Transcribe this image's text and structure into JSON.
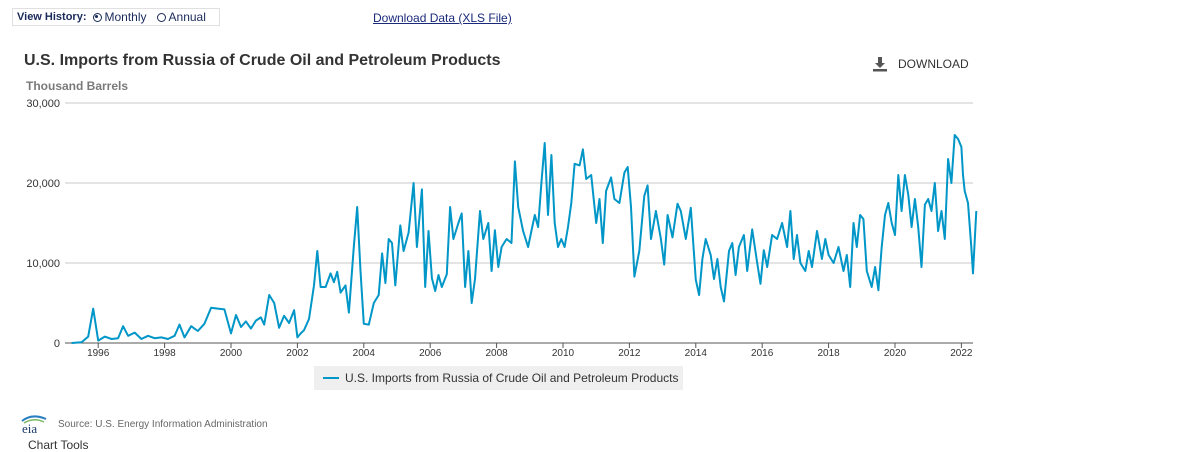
{
  "header": {
    "view_history_label": "View History:",
    "monthly_label": "Monthly",
    "annual_label": "Annual",
    "selected": "Monthly",
    "download_data_link": "Download Data (XLS File)"
  },
  "download_button_label": "DOWNLOAD",
  "footer": {
    "logo_text": "eia",
    "source": "Source: U.S. Energy Information Administration",
    "chart_tools": "Chart Tools"
  },
  "colors": {
    "series": "#0096c7",
    "grid": "#c8c8c8",
    "axis": "#555555"
  },
  "chart_data": {
    "type": "line",
    "title": "U.S. Imports from Russia of Crude Oil and Petroleum Products",
    "ylabel": "Thousand Barrels",
    "ylim": [
      0,
      30000
    ],
    "xlim": [
      1995,
      2022.35
    ],
    "y_ticks": [
      {
        "value": 0,
        "label": "0"
      },
      {
        "value": 10000,
        "label": "10,000"
      },
      {
        "value": 20000,
        "label": "20,000"
      },
      {
        "value": 30000,
        "label": "30,000"
      }
    ],
    "x_ticks": [
      "1996",
      "1998",
      "2000",
      "2002",
      "2004",
      "2006",
      "2008",
      "2010",
      "2012",
      "2014",
      "2016",
      "2018",
      "2020",
      "2022"
    ],
    "grid": "horizontal",
    "legend_position": "bottom",
    "series": [
      {
        "name": "U.S. Imports from Russia of Crude Oil and Petroleum Products",
        "points": [
          [
            1995.2,
            0
          ],
          [
            1995.5,
            100
          ],
          [
            1995.7,
            800
          ],
          [
            1995.85,
            4300
          ],
          [
            1996.0,
            300
          ],
          [
            1996.2,
            800
          ],
          [
            1996.4,
            500
          ],
          [
            1996.6,
            600
          ],
          [
            1996.75,
            2100
          ],
          [
            1996.9,
            900
          ],
          [
            1997.1,
            1300
          ],
          [
            1997.3,
            500
          ],
          [
            1997.5,
            900
          ],
          [
            1997.7,
            600
          ],
          [
            1997.9,
            700
          ],
          [
            1998.1,
            500
          ],
          [
            1998.3,
            900
          ],
          [
            1998.45,
            2300
          ],
          [
            1998.6,
            700
          ],
          [
            1998.8,
            2100
          ],
          [
            1999.0,
            1500
          ],
          [
            1999.2,
            2400
          ],
          [
            1999.4,
            4400
          ],
          [
            1999.6,
            4300
          ],
          [
            1999.8,
            4200
          ],
          [
            2000.0,
            1200
          ],
          [
            2000.15,
            3500
          ],
          [
            2000.3,
            2000
          ],
          [
            2000.45,
            2700
          ],
          [
            2000.6,
            1800
          ],
          [
            2000.75,
            2800
          ],
          [
            2000.9,
            3200
          ],
          [
            2001.0,
            2300
          ],
          [
            2001.15,
            6000
          ],
          [
            2001.3,
            5000
          ],
          [
            2001.45,
            1900
          ],
          [
            2001.6,
            3400
          ],
          [
            2001.75,
            2500
          ],
          [
            2001.9,
            4100
          ],
          [
            2002.0,
            700
          ],
          [
            2002.1,
            1200
          ],
          [
            2002.2,
            1600
          ],
          [
            2002.35,
            3000
          ],
          [
            2002.5,
            7200
          ],
          [
            2002.6,
            11500
          ],
          [
            2002.7,
            7000
          ],
          [
            2002.85,
            7000
          ],
          [
            2003.0,
            8700
          ],
          [
            2003.1,
            7600
          ],
          [
            2003.2,
            8900
          ],
          [
            2003.3,
            6300
          ],
          [
            2003.45,
            7200
          ],
          [
            2003.55,
            3800
          ],
          [
            2003.7,
            12000
          ],
          [
            2003.8,
            17000
          ],
          [
            2003.9,
            9000
          ],
          [
            2004.0,
            2400
          ],
          [
            2004.15,
            2300
          ],
          [
            2004.3,
            5000
          ],
          [
            2004.45,
            6000
          ],
          [
            2004.55,
            11200
          ],
          [
            2004.65,
            7500
          ],
          [
            2004.75,
            13000
          ],
          [
            2004.85,
            12500
          ],
          [
            2004.95,
            7200
          ],
          [
            2005.1,
            14700
          ],
          [
            2005.2,
            11500
          ],
          [
            2005.35,
            13800
          ],
          [
            2005.5,
            20000
          ],
          [
            2005.6,
            12000
          ],
          [
            2005.75,
            19200
          ],
          [
            2005.85,
            7000
          ],
          [
            2005.95,
            14000
          ],
          [
            2006.05,
            8100
          ],
          [
            2006.15,
            6500
          ],
          [
            2006.25,
            8500
          ],
          [
            2006.35,
            7000
          ],
          [
            2006.5,
            8600
          ],
          [
            2006.6,
            17000
          ],
          [
            2006.7,
            13000
          ],
          [
            2006.85,
            15000
          ],
          [
            2006.95,
            16200
          ],
          [
            2007.05,
            7000
          ],
          [
            2007.15,
            11500
          ],
          [
            2007.25,
            5000
          ],
          [
            2007.35,
            8000
          ],
          [
            2007.5,
            16500
          ],
          [
            2007.6,
            13000
          ],
          [
            2007.75,
            15000
          ],
          [
            2007.85,
            9000
          ],
          [
            2007.95,
            14100
          ],
          [
            2008.05,
            9500
          ],
          [
            2008.15,
            12000
          ],
          [
            2008.3,
            13000
          ],
          [
            2008.45,
            12500
          ],
          [
            2008.55,
            22700
          ],
          [
            2008.65,
            17000
          ],
          [
            2008.8,
            14000
          ],
          [
            2008.95,
            12000
          ],
          [
            2009.05,
            14000
          ],
          [
            2009.15,
            16000
          ],
          [
            2009.25,
            14500
          ],
          [
            2009.35,
            20000
          ],
          [
            2009.45,
            25000
          ],
          [
            2009.55,
            16000
          ],
          [
            2009.65,
            23500
          ],
          [
            2009.75,
            15000
          ],
          [
            2009.85,
            12000
          ],
          [
            2009.95,
            13000
          ],
          [
            2010.05,
            12000
          ],
          [
            2010.15,
            14500
          ],
          [
            2010.25,
            17500
          ],
          [
            2010.35,
            22400
          ],
          [
            2010.5,
            22200
          ],
          [
            2010.6,
            24200
          ],
          [
            2010.7,
            20500
          ],
          [
            2010.85,
            21000
          ],
          [
            2011.0,
            15000
          ],
          [
            2011.1,
            18000
          ],
          [
            2011.2,
            12500
          ],
          [
            2011.3,
            19000
          ],
          [
            2011.45,
            20700
          ],
          [
            2011.55,
            18000
          ],
          [
            2011.7,
            17500
          ],
          [
            2011.85,
            21300
          ],
          [
            2011.95,
            22000
          ],
          [
            2012.05,
            17000
          ],
          [
            2012.15,
            8300
          ],
          [
            2012.3,
            11500
          ],
          [
            2012.45,
            18400
          ],
          [
            2012.55,
            19700
          ],
          [
            2012.65,
            13000
          ],
          [
            2012.8,
            16500
          ],
          [
            2012.95,
            13000
          ],
          [
            2013.05,
            9800
          ],
          [
            2013.15,
            16000
          ],
          [
            2013.3,
            13200
          ],
          [
            2013.45,
            17400
          ],
          [
            2013.55,
            16500
          ],
          [
            2013.7,
            13000
          ],
          [
            2013.85,
            16900
          ],
          [
            2014.0,
            7900
          ],
          [
            2014.1,
            6000
          ],
          [
            2014.2,
            10500
          ],
          [
            2014.3,
            13000
          ],
          [
            2014.45,
            11000
          ],
          [
            2014.55,
            8000
          ],
          [
            2014.65,
            10500
          ],
          [
            2014.75,
            7000
          ],
          [
            2014.85,
            5200
          ],
          [
            2015.0,
            11500
          ],
          [
            2015.1,
            12500
          ],
          [
            2015.2,
            8500
          ],
          [
            2015.3,
            12000
          ],
          [
            2015.45,
            13500
          ],
          [
            2015.55,
            9000
          ],
          [
            2015.7,
            14200
          ],
          [
            2015.85,
            10000
          ],
          [
            2015.95,
            7400
          ],
          [
            2016.05,
            11600
          ],
          [
            2016.15,
            9500
          ],
          [
            2016.3,
            13500
          ],
          [
            2016.45,
            13000
          ],
          [
            2016.6,
            15000
          ],
          [
            2016.75,
            12000
          ],
          [
            2016.85,
            16500
          ],
          [
            2016.95,
            10500
          ],
          [
            2017.05,
            13500
          ],
          [
            2017.15,
            10000
          ],
          [
            2017.3,
            9000
          ],
          [
            2017.4,
            11500
          ],
          [
            2017.5,
            9500
          ],
          [
            2017.65,
            14000
          ],
          [
            2017.8,
            10500
          ],
          [
            2017.9,
            13000
          ],
          [
            2018.0,
            11000
          ],
          [
            2018.15,
            10000
          ],
          [
            2018.3,
            12000
          ],
          [
            2018.45,
            9000
          ],
          [
            2018.55,
            11000
          ],
          [
            2018.65,
            7000
          ],
          [
            2018.75,
            15000
          ],
          [
            2018.85,
            12000
          ],
          [
            2018.95,
            16000
          ],
          [
            2019.05,
            15500
          ],
          [
            2019.15,
            9000
          ],
          [
            2019.3,
            7000
          ],
          [
            2019.4,
            9500
          ],
          [
            2019.5,
            6600
          ],
          [
            2019.6,
            12000
          ],
          [
            2019.7,
            16000
          ],
          [
            2019.8,
            17500
          ],
          [
            2019.9,
            15000
          ],
          [
            2020.0,
            13500
          ],
          [
            2020.1,
            21000
          ],
          [
            2020.2,
            16500
          ],
          [
            2020.3,
            21000
          ],
          [
            2020.4,
            18500
          ],
          [
            2020.5,
            14500
          ],
          [
            2020.6,
            18000
          ],
          [
            2020.7,
            14500
          ],
          [
            2020.8,
            9500
          ],
          [
            2020.9,
            17300
          ],
          [
            2021.0,
            18000
          ],
          [
            2021.1,
            16500
          ],
          [
            2021.2,
            20000
          ],
          [
            2021.3,
            14000
          ],
          [
            2021.4,
            16500
          ],
          [
            2021.5,
            13000
          ],
          [
            2021.6,
            23000
          ],
          [
            2021.7,
            20000
          ],
          [
            2021.8,
            26000
          ],
          [
            2021.9,
            25500
          ],
          [
            2022.0,
            24500
          ],
          [
            2022.05,
            21000
          ],
          [
            2022.1,
            19000
          ],
          [
            2022.2,
            17500
          ],
          [
            2022.3,
            12000
          ],
          [
            2022.35,
            8700
          ],
          [
            2022.45,
            16500
          ]
        ]
      }
    ]
  }
}
